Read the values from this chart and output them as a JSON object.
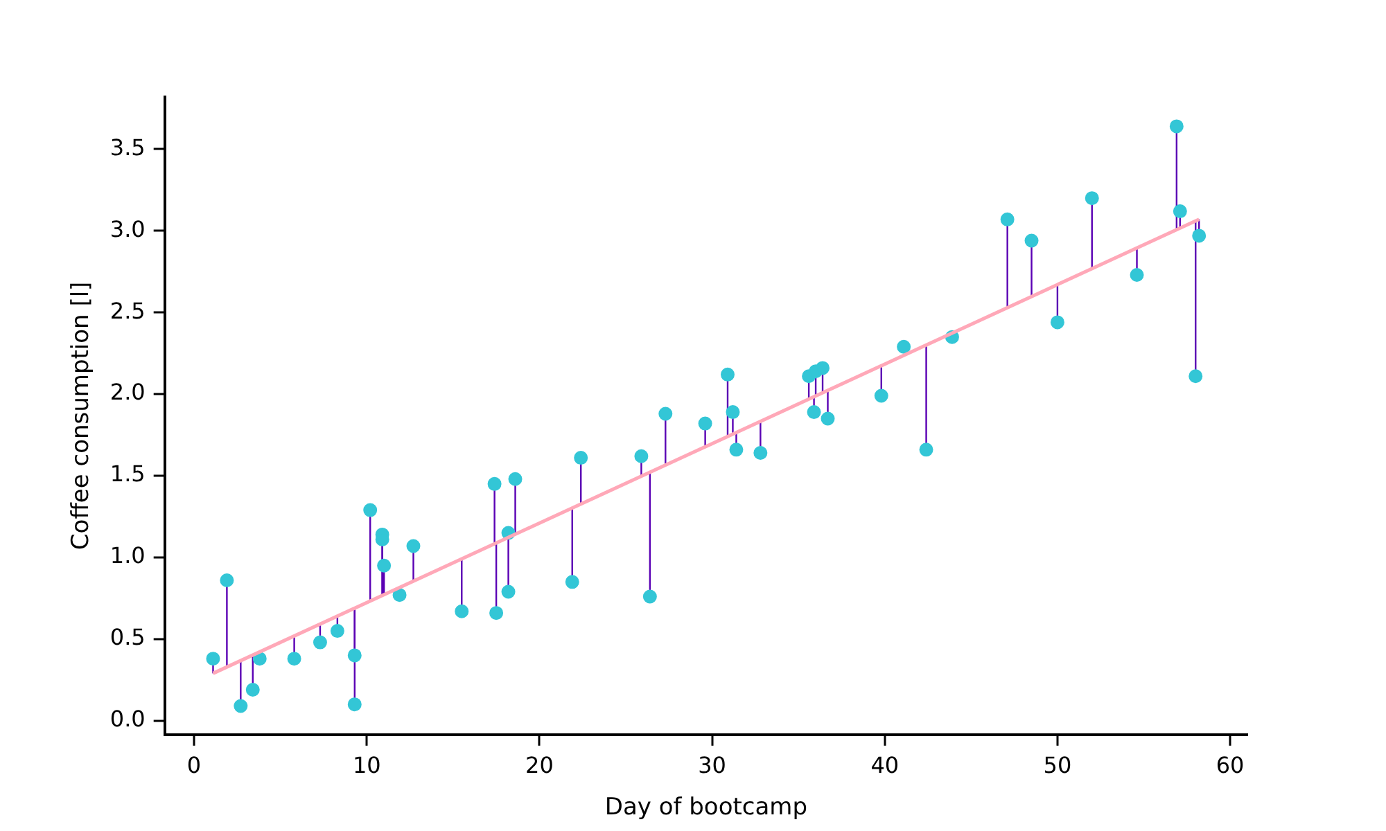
{
  "chart_data": {
    "type": "scatter",
    "xlabel": "Day of bootcamp",
    "ylabel": "Coffee consumption [l]",
    "xlim": [
      -1.7,
      61
    ],
    "ylim": [
      -0.085,
      3.82
    ],
    "xticks": [
      0,
      10,
      20,
      30,
      40,
      50,
      60
    ],
    "yticks": [
      {
        "value": 0,
        "label": "0.0"
      },
      {
        "value": 0.5,
        "label": "0.5"
      },
      {
        "value": 1,
        "label": "1.0"
      },
      {
        "value": 1.5,
        "label": "1.5"
      },
      {
        "value": 2,
        "label": "2.0"
      },
      {
        "value": 2.5,
        "label": "2.5"
      },
      {
        "value": 3,
        "label": "3.0"
      },
      {
        "value": 3.5,
        "label": "3.5"
      }
    ],
    "grid": false,
    "legend": false,
    "marker": "circle",
    "series": [
      {
        "color": "#33c6d6",
        "errors": [
          [
            0.29,
            0.38
          ],
          [
            0.33,
            0.86
          ],
          [
            0.09,
            0.37
          ],
          [
            0.19,
            0.4
          ],
          null,
          [
            0.38,
            0.52
          ],
          [
            0.48,
            0.59
          ],
          [
            0.55,
            0.64
          ],
          [
            0.4,
            0.69
          ],
          [
            0.1,
            0.69
          ],
          [
            0.73,
            1.29
          ],
          [
            0.77,
            1.14
          ],
          [
            0.77,
            1.11
          ],
          [
            0.77,
            0.95
          ],
          null,
          [
            0.85,
            1.07
          ],
          [
            0.67,
            0.99
          ],
          [
            1.08,
            1.45
          ],
          [
            0.66,
            1.09
          ],
          [
            1.12,
            1.15
          ],
          [
            0.79,
            1.12
          ],
          [
            1.14,
            1.48
          ],
          [
            0.85,
            1.3
          ],
          [
            1.33,
            1.61
          ],
          [
            1.5,
            1.62
          ],
          [
            0.76,
            1.52
          ],
          [
            1.57,
            1.88
          ],
          [
            1.68,
            1.82
          ],
          [
            1.74,
            2.12
          ],
          [
            1.76,
            1.89
          ],
          [
            1.66,
            1.77
          ],
          [
            1.64,
            1.83
          ],
          [
            1.97,
            2.11
          ],
          [
            1.89,
            1.98
          ],
          [
            1.99,
            2.14
          ],
          [
            2.01,
            2.16
          ],
          [
            1.85,
            2.02
          ],
          [
            1.99,
            2.17
          ],
          null,
          [
            1.66,
            2.3
          ],
          null,
          [
            2.53,
            3.07
          ],
          [
            2.6,
            2.94
          ],
          [
            2.44,
            2.67
          ],
          [
            2.77,
            3.2
          ],
          [
            2.73,
            2.89
          ],
          [
            3.01,
            3.64
          ],
          [
            3.02,
            3.12
          ],
          [
            2.11,
            3.06
          ],
          [
            2.97,
            3.07
          ]
        ],
        "x": [
          1.1,
          1.9,
          2.7,
          3.4,
          3.8,
          5.8,
          7.3,
          8.3,
          9.3,
          9.3,
          10.2,
          10.9,
          10.9,
          11,
          11.9,
          12.7,
          15.5,
          17.4,
          17.5,
          18.2,
          18.2,
          18.6,
          21.9,
          22.4,
          25.9,
          26.4,
          27.3,
          29.6,
          30.9,
          31.2,
          31.4,
          32.8,
          35.6,
          35.9,
          36,
          36.4,
          36.7,
          39.8,
          41.1,
          42.4,
          43.9,
          47.1,
          48.5,
          50,
          52,
          54.6,
          56.9,
          57.1,
          58,
          58.2
        ],
        "values": [
          0.38,
          0.86,
          0.09,
          0.19,
          0.38,
          0.38,
          0.48,
          0.55,
          0.4,
          0.1,
          1.29,
          1.14,
          1.11,
          0.95,
          0.77,
          1.07,
          0.67,
          1.45,
          0.66,
          1.15,
          0.79,
          1.48,
          0.85,
          1.61,
          1.62,
          0.76,
          1.88,
          1.82,
          2.12,
          1.89,
          1.66,
          1.64,
          2.11,
          1.89,
          2.14,
          2.16,
          1.85,
          1.99,
          2.29,
          1.66,
          2.35,
          3.07,
          2.94,
          2.44,
          3.2,
          2.73,
          3.64,
          3.12,
          2.11,
          2.97
        ]
      },
      {
        "type": "line",
        "color": "#ffa8b8",
        "line_style": "solid",
        "marker": "none",
        "x": [
          1.1,
          58.2
        ],
        "values": [
          0.29,
          3.07
        ]
      }
    ]
  }
}
